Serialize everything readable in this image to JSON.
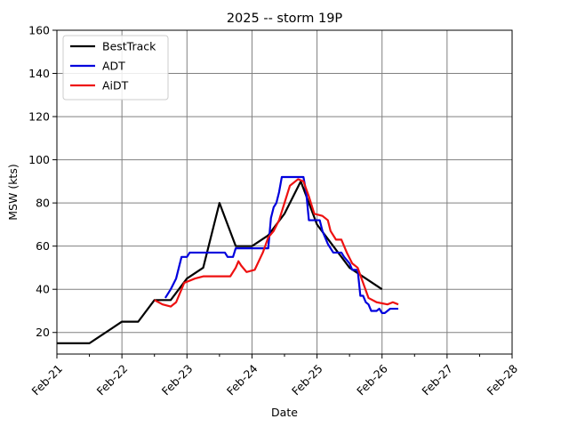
{
  "chart_data": {
    "type": "line",
    "title": "2025 -- storm 19P",
    "xlabel": "Date",
    "ylabel": "MSW (kts)",
    "xlim": [
      "2025-02-21",
      "2025-02-28"
    ],
    "ylim": [
      10,
      160
    ],
    "x_ticks": [
      {
        "date": "2025-02-21",
        "label": "Feb-21"
      },
      {
        "date": "2025-02-22",
        "label": "Feb-22"
      },
      {
        "date": "2025-02-23",
        "label": "Feb-23"
      },
      {
        "date": "2025-02-24",
        "label": "Feb-24"
      },
      {
        "date": "2025-02-25",
        "label": "Feb-25"
      },
      {
        "date": "2025-02-26",
        "label": "Feb-26"
      },
      {
        "date": "2025-02-27",
        "label": "Feb-27"
      },
      {
        "date": "2025-02-28",
        "label": "Feb-28"
      }
    ],
    "y_ticks": [
      20,
      40,
      60,
      80,
      100,
      120,
      140,
      160
    ],
    "grid": true,
    "legend": "top-left",
    "series": [
      {
        "name": "BestTrack",
        "color": "#000000",
        "points": [
          [
            "2025-02-21 00:00",
            15
          ],
          [
            "2025-02-21 12:00",
            15
          ],
          [
            "2025-02-22 00:00",
            25
          ],
          [
            "2025-02-22 06:00",
            25
          ],
          [
            "2025-02-22 12:00",
            35
          ],
          [
            "2025-02-22 18:00",
            35
          ],
          [
            "2025-02-23 00:00",
            45
          ],
          [
            "2025-02-23 06:00",
            50
          ],
          [
            "2025-02-23 12:00",
            80
          ],
          [
            "2025-02-23 18:00",
            60
          ],
          [
            "2025-02-24 00:00",
            60
          ],
          [
            "2025-02-24 06:00",
            65
          ],
          [
            "2025-02-24 12:00",
            75
          ],
          [
            "2025-02-24 18:00",
            90
          ],
          [
            "2025-02-25 00:00",
            70
          ],
          [
            "2025-02-25 06:00",
            60
          ],
          [
            "2025-02-25 12:00",
            50
          ],
          [
            "2025-02-26 00:00",
            40
          ]
        ]
      },
      {
        "name": "ADT",
        "color": "#0000dd",
        "points": [
          [
            "2025-02-22 16:00",
            36
          ],
          [
            "2025-02-22 18:00",
            40
          ],
          [
            "2025-02-22 20:00",
            45
          ],
          [
            "2025-02-22 21:00",
            50
          ],
          [
            "2025-02-22 22:00",
            55
          ],
          [
            "2025-02-23 00:00",
            55
          ],
          [
            "2025-02-23 01:00",
            57
          ],
          [
            "2025-02-23 14:00",
            57
          ],
          [
            "2025-02-23 15:00",
            55
          ],
          [
            "2025-02-23 17:00",
            55
          ],
          [
            "2025-02-23 18:00",
            59
          ],
          [
            "2025-02-24 06:00",
            59
          ],
          [
            "2025-02-24 07:00",
            73
          ],
          [
            "2025-02-24 08:00",
            78
          ],
          [
            "2025-02-24 09:00",
            80
          ],
          [
            "2025-02-24 10:00",
            85
          ],
          [
            "2025-02-24 11:00",
            92
          ],
          [
            "2025-02-24 19:00",
            92
          ],
          [
            "2025-02-24 20:00",
            85
          ],
          [
            "2025-02-24 21:00",
            72
          ],
          [
            "2025-02-25 01:00",
            72
          ],
          [
            "2025-02-25 02:00",
            67
          ],
          [
            "2025-02-25 04:00",
            61
          ],
          [
            "2025-02-25 06:00",
            57
          ],
          [
            "2025-02-25 09:00",
            57
          ],
          [
            "2025-02-25 10:00",
            55
          ],
          [
            "2025-02-25 12:00",
            52
          ],
          [
            "2025-02-25 13:00",
            49
          ],
          [
            "2025-02-25 15:00",
            49
          ],
          [
            "2025-02-25 16:00",
            37
          ],
          [
            "2025-02-25 17:00",
            37
          ],
          [
            "2025-02-25 18:00",
            34
          ],
          [
            "2025-02-25 19:00",
            33
          ],
          [
            "2025-02-25 20:00",
            30
          ],
          [
            "2025-02-25 22:00",
            30
          ],
          [
            "2025-02-25 23:00",
            31
          ],
          [
            "2025-02-26 00:00",
            29
          ],
          [
            "2025-02-26 01:00",
            29
          ],
          [
            "2025-02-26 02:00",
            30
          ],
          [
            "2025-02-26 03:00",
            31
          ],
          [
            "2025-02-26 06:00",
            31
          ]
        ]
      },
      {
        "name": "AiDT",
        "color": "#ee1111",
        "points": [
          [
            "2025-02-22 12:00",
            35
          ],
          [
            "2025-02-22 15:00",
            33
          ],
          [
            "2025-02-22 18:00",
            32
          ],
          [
            "2025-02-22 20:00",
            34
          ],
          [
            "2025-02-22 23:00",
            43
          ],
          [
            "2025-02-23 03:00",
            45
          ],
          [
            "2025-02-23 06:00",
            46
          ],
          [
            "2025-02-23 12:00",
            46
          ],
          [
            "2025-02-23 16:00",
            46
          ],
          [
            "2025-02-23 18:00",
            50
          ],
          [
            "2025-02-23 19:00",
            53
          ],
          [
            "2025-02-23 20:00",
            51
          ],
          [
            "2025-02-23 22:00",
            48
          ],
          [
            "2025-02-24 01:00",
            49
          ],
          [
            "2025-02-24 04:00",
            57
          ],
          [
            "2025-02-24 06:00",
            64
          ],
          [
            "2025-02-24 08:00",
            67
          ],
          [
            "2025-02-24 10:00",
            72
          ],
          [
            "2025-02-24 12:00",
            80
          ],
          [
            "2025-02-24 14:00",
            88
          ],
          [
            "2025-02-24 17:00",
            91
          ],
          [
            "2025-02-24 19:00",
            90
          ],
          [
            "2025-02-24 21:00",
            83
          ],
          [
            "2025-02-24 23:00",
            75
          ],
          [
            "2025-02-25 02:00",
            74
          ],
          [
            "2025-02-25 04:00",
            72
          ],
          [
            "2025-02-25 05:00",
            67
          ],
          [
            "2025-02-25 07:00",
            63
          ],
          [
            "2025-02-25 09:00",
            63
          ],
          [
            "2025-02-25 11:00",
            57
          ],
          [
            "2025-02-25 13:00",
            52
          ],
          [
            "2025-02-25 15:00",
            50
          ],
          [
            "2025-02-25 17:00",
            43
          ],
          [
            "2025-02-25 19:00",
            36
          ],
          [
            "2025-02-25 22:00",
            34
          ],
          [
            "2025-02-26 02:00",
            33
          ],
          [
            "2025-02-26 04:00",
            34
          ],
          [
            "2025-02-26 06:00",
            33
          ]
        ]
      }
    ]
  }
}
